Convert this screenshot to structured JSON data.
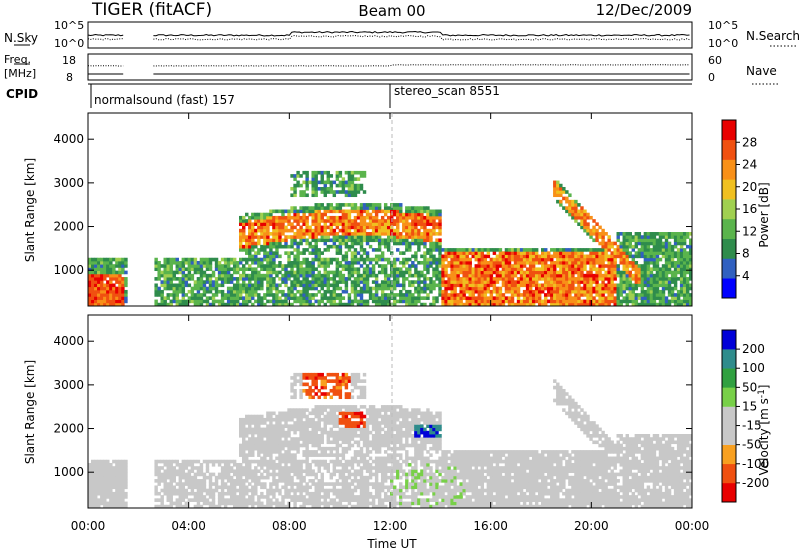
{
  "header": {
    "radar": "TIGER (fitACF)",
    "beam": "Beam 00",
    "date": "12/Dec/2009"
  },
  "top_panels": {
    "nsky_label": "N.Sky",
    "nsky_ticks": [
      "10^5",
      "10^0"
    ],
    "nsearch_label": "N.Search",
    "nsearch_ticks": [
      "10^5",
      "10^0"
    ],
    "freq_label_1": "Freq.",
    "freq_label_2": "[MHz]",
    "freq_ticks": [
      "18",
      "8"
    ],
    "nave_label": "Nave",
    "nave_ticks": [
      "60",
      "0"
    ],
    "cpid_label": "CPID",
    "cpid_segments": [
      {
        "label": "normalsound (fast) 157",
        "start_hour": 0
      },
      {
        "label": "stereo_scan 8551",
        "start_hour": 12
      }
    ]
  },
  "chart_data": [
    {
      "type": "heatmap",
      "name": "power",
      "ylabel": "Slant Range [km]",
      "xlabel": "",
      "yticks": [
        "4000",
        "3000",
        "2000",
        "1000"
      ],
      "ylim": [
        180,
        4600
      ],
      "xlim_hours": [
        0,
        24
      ],
      "colorbar_label": "Power [dB]",
      "colorbar_ticks": [
        "28",
        "24",
        "20",
        "16",
        "12",
        "8",
        "4"
      ],
      "colorbar_colors": [
        "#0000ff",
        "#3060c0",
        "#2f8c4c",
        "#5ab44c",
        "#a0d050",
        "#f0c020",
        "#f89018",
        "#f05010",
        "#e80000"
      ],
      "gap_hours": [
        1.5,
        2.6
      ]
    },
    {
      "type": "heatmap",
      "name": "velocity",
      "ylabel": "Slant Range [km]",
      "xlabel": "Time UT",
      "yticks": [
        "4000",
        "3000",
        "2000",
        "1000"
      ],
      "xticks": [
        "00:00",
        "04:00",
        "08:00",
        "12:00",
        "16:00",
        "20:00",
        "00:00"
      ],
      "ylim": [
        180,
        4600
      ],
      "xlim_hours": [
        0,
        24
      ],
      "colorbar_label": "Velocity [m s",
      "colorbar_label_sup": "-1",
      "colorbar_label_end": "]",
      "colorbar_ticks": [
        "200",
        "100",
        "50",
        "15",
        "-15",
        "-50",
        "-100",
        "-200"
      ],
      "colorbar_colors": [
        "#e80000",
        "#f05010",
        "#f8a020",
        "#c8c8c8",
        "#c8c8c8",
        "#78d048",
        "#30a040",
        "#2f8c8c",
        "#0000d8"
      ],
      "gap_hours": [
        1.5,
        2.6
      ]
    }
  ]
}
